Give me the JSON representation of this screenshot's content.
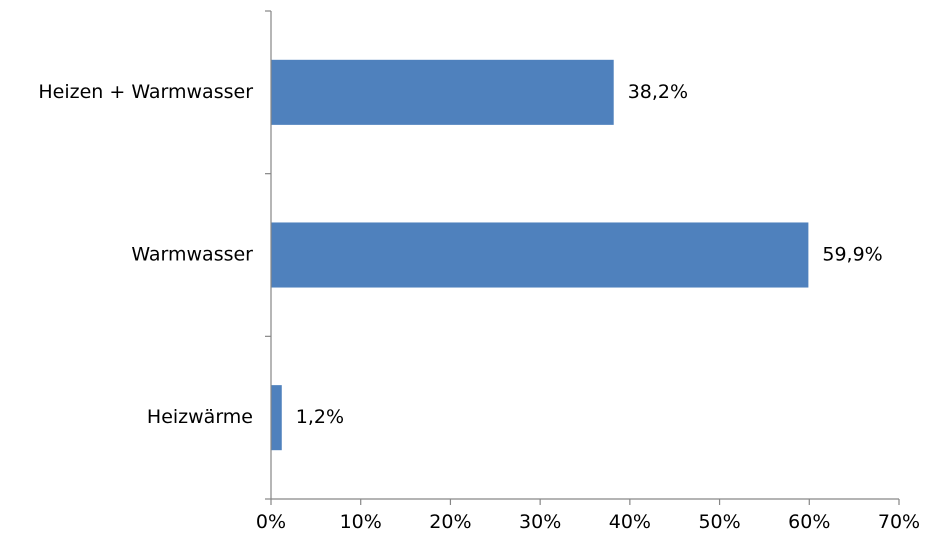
{
  "chart_data": {
    "type": "bar",
    "orientation": "horizontal",
    "categories": [
      "Heizen + Warmwasser",
      "Warmwasser",
      "Heizwärme"
    ],
    "values": [
      38.2,
      59.9,
      1.2
    ],
    "value_labels": [
      "38,2%",
      "59,9%",
      "1,2%"
    ],
    "xlim": [
      0,
      70
    ],
    "x_ticks": [
      0,
      10,
      20,
      30,
      40,
      50,
      60,
      70
    ],
    "x_tick_labels": [
      "0%",
      "10%",
      "20%",
      "30%",
      "40%",
      "50%",
      "60%",
      "70%"
    ],
    "grid": false,
    "legend": "none",
    "bar_color": "#4F81BD"
  }
}
